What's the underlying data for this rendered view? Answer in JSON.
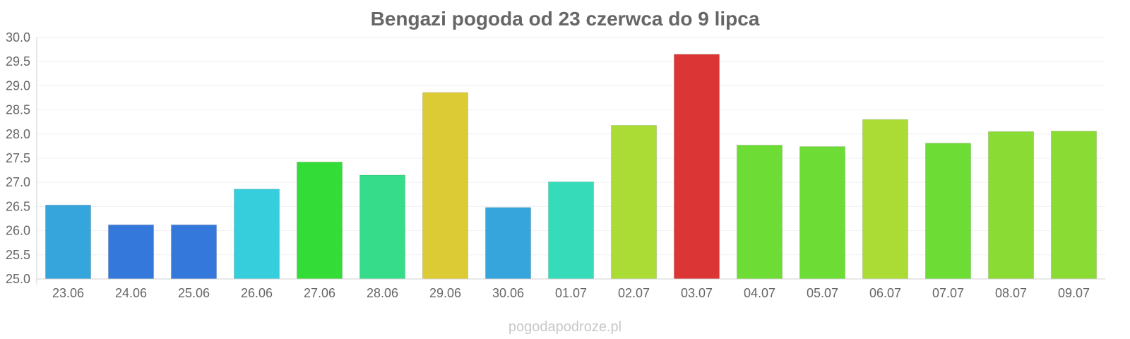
{
  "chart_data": {
    "type": "bar",
    "title": "Bengazi pogoda od 23 czerwca do 9 lipca",
    "xlabel": "",
    "ylabel": "",
    "ylim": [
      25.0,
      30.0
    ],
    "yticks": [
      "25.0",
      "25.5",
      "26.0",
      "26.5",
      "27.0",
      "27.5",
      "28.0",
      "28.5",
      "29.0",
      "29.5",
      "30.0"
    ],
    "grid": true,
    "legend": "none",
    "categories": [
      "23.06",
      "24.06",
      "25.06",
      "26.06",
      "27.06",
      "28.06",
      "29.06",
      "30.06",
      "01.07",
      "02.07",
      "03.07",
      "04.07",
      "05.07",
      "06.07",
      "07.07",
      "08.07",
      "09.07"
    ],
    "values": [
      26.53,
      26.12,
      26.12,
      26.86,
      27.42,
      27.15,
      28.86,
      26.48,
      27.01,
      28.18,
      29.65,
      27.77,
      27.74,
      28.3,
      27.81,
      28.05,
      28.06
    ],
    "colors": [
      "#36a5dc",
      "#3578dc",
      "#3578dc",
      "#36cedc",
      "#33dc36",
      "#36dc8a",
      "#dccb35",
      "#36a5dc",
      "#36dcb9",
      "#aadc35",
      "#dc3535",
      "#6ddc35",
      "#6ddc35",
      "#aadc35",
      "#6ddc35",
      "#8adc35",
      "#8adc35"
    ]
  },
  "watermark": "pogodapodroze.pl"
}
